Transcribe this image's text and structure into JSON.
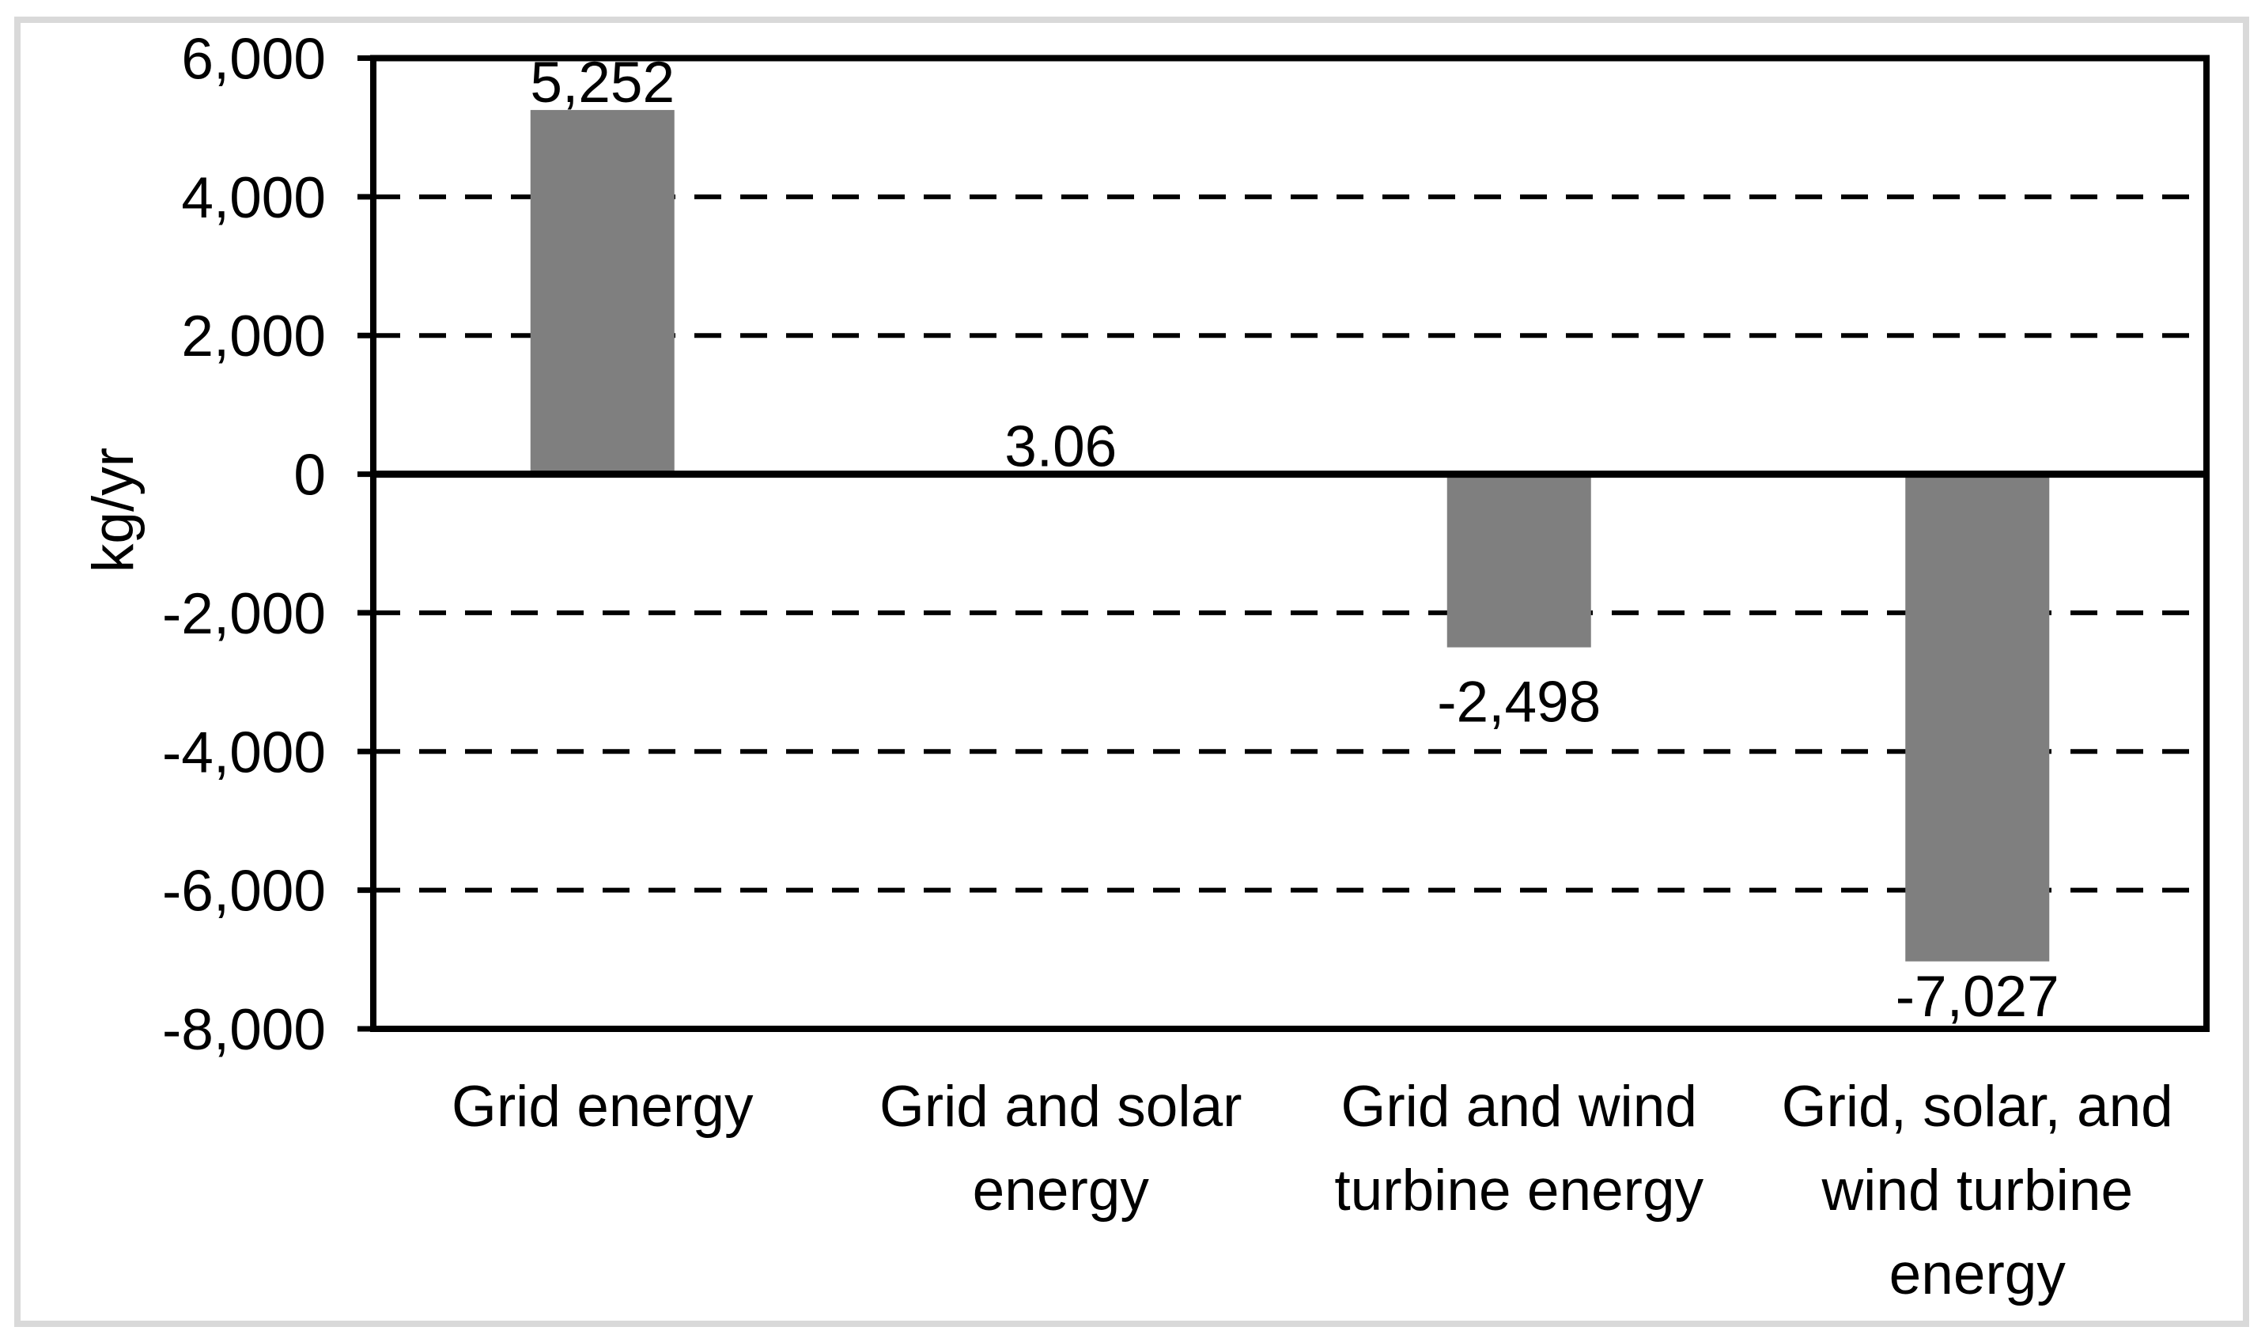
{
  "figure": {
    "background": "#FFFFFF",
    "outer_border_color": "#D9D9D9"
  },
  "chart_data": {
    "type": "bar",
    "title": "",
    "xlabel": "",
    "ylabel": "kg/yr",
    "categories": [
      "Grid energy",
      "Grid and solar energy",
      "Grid and wind turbine energy",
      "Grid, solar, and wind turbine energy"
    ],
    "category_lines": [
      [
        "Grid energy"
      ],
      [
        "Grid and solar",
        "energy"
      ],
      [
        "Grid and wind",
        "turbine energy"
      ],
      [
        "Grid, solar, and",
        "wind turbine",
        "energy"
      ]
    ],
    "values": [
      5252,
      3.06,
      -2498,
      -7027
    ],
    "data_labels": [
      "5,252",
      "3.06",
      "-2,498",
      "-7,027"
    ],
    "ylim": [
      -8000,
      6000
    ],
    "ytick_interval": 2000,
    "yticks": [
      6000,
      4000,
      2000,
      0,
      -2000,
      -4000,
      -6000,
      -8000
    ],
    "ytick_labels": [
      "6,000",
      "4,000",
      "2,000",
      "0",
      "-2,000",
      "-4,000",
      "-6,000",
      "-8,000"
    ],
    "gridlines": {
      "values": [
        4000,
        2000,
        -2000,
        -4000,
        -6000
      ],
      "style": "dashed",
      "color": "#000000"
    },
    "legend": "none",
    "bar_color": "#7F7F7F",
    "axis_color": "#000000",
    "label_color": "#000000"
  }
}
